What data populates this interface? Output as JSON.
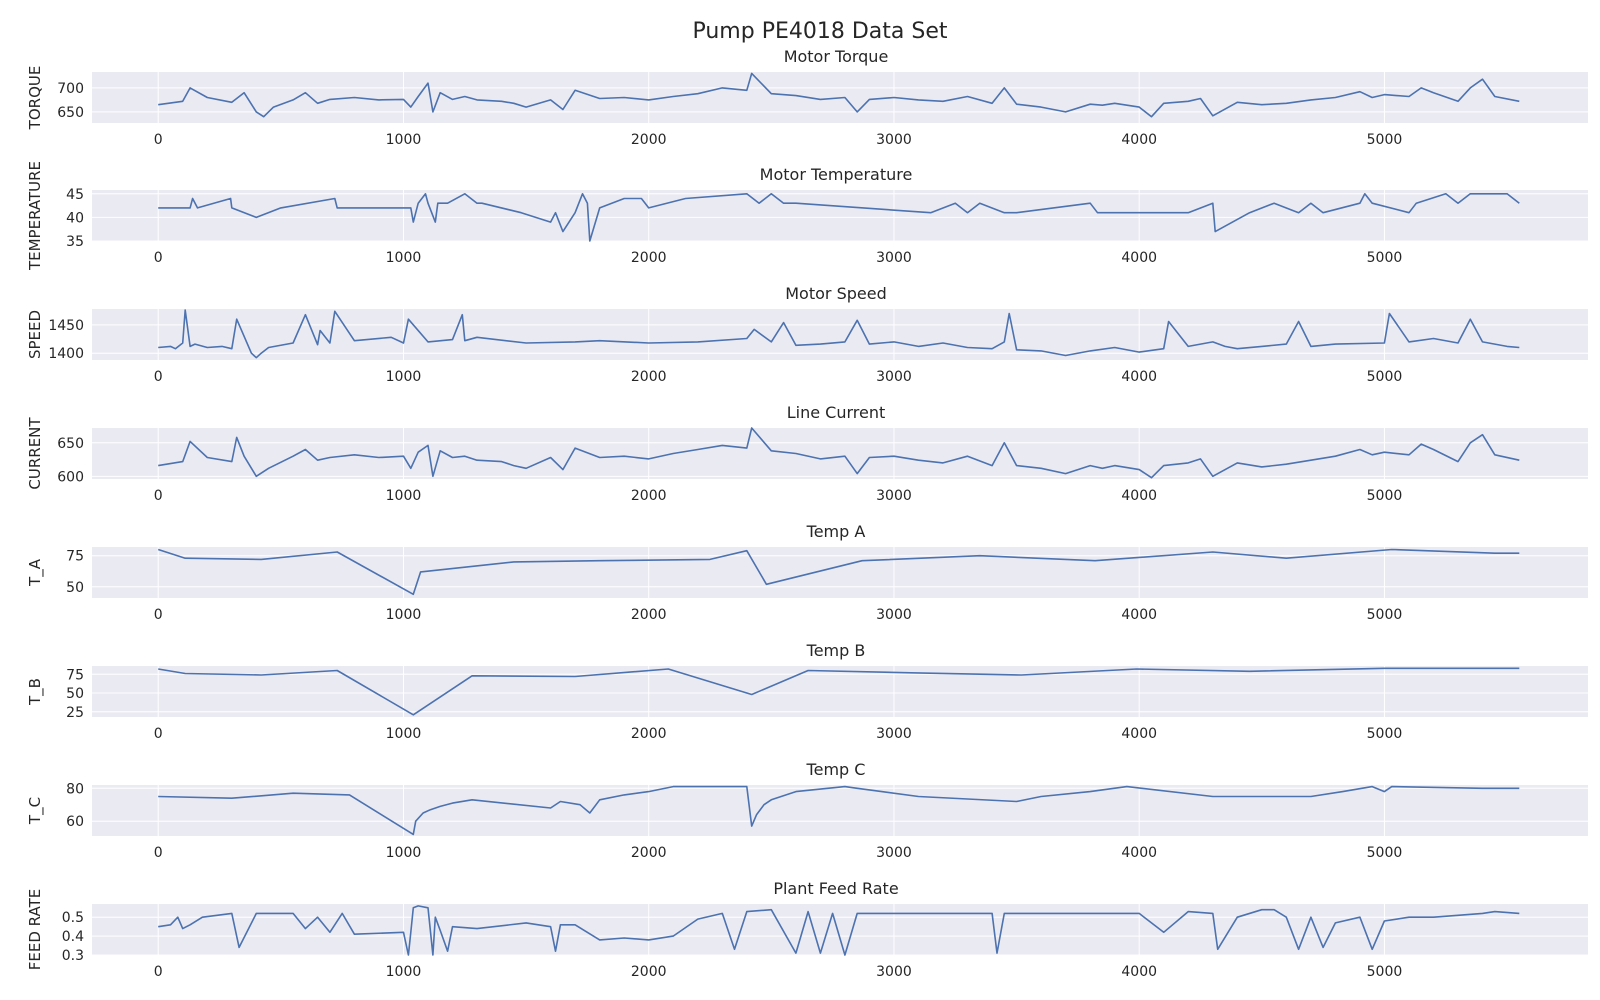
{
  "figure": {
    "title": "Pump PE4018 Data Set",
    "background": "#ffffff",
    "axes_face": "#eaeaf2",
    "grid_color": "#ffffff",
    "line_color": "#4c72b0"
  },
  "chart_data": [
    {
      "type": "line",
      "title": "Motor Torque",
      "xlabel": "",
      "ylabel": "TORQUE",
      "xlim": [
        -270,
        5830
      ],
      "ylim": [
        627,
        733
      ],
      "xticks": [
        0,
        1000,
        2000,
        3000,
        4000,
        5000
      ],
      "yticks": [
        650,
        700
      ],
      "grid": true,
      "series": [
        {
          "x": [
            0,
            100,
            130,
            200,
            300,
            350,
            400,
            430,
            470,
            550,
            600,
            650,
            700,
            800,
            900,
            1000,
            1030,
            1060,
            1100,
            1120,
            1150,
            1200,
            1250,
            1300,
            1400,
            1450,
            1500,
            1600,
            1650,
            1700,
            1800,
            1900,
            2000,
            2100,
            2200,
            2300,
            2400,
            2420,
            2500,
            2600,
            2700,
            2800,
            2850,
            2900,
            3000,
            3100,
            3200,
            3300,
            3400,
            3450,
            3500,
            3600,
            3700,
            3800,
            3850,
            3900,
            4000,
            4050,
            4100,
            4200,
            4250,
            4300,
            4400,
            4500,
            4600,
            4700,
            4800,
            4900,
            4950,
            5000,
            5100,
            5150,
            5200,
            5300,
            5350,
            5400,
            5450,
            5550
          ],
          "y": [
            665,
            672,
            700,
            680,
            670,
            690,
            650,
            640,
            660,
            675,
            690,
            668,
            676,
            680,
            675,
            676,
            660,
            682,
            710,
            650,
            690,
            676,
            682,
            675,
            672,
            668,
            660,
            675,
            655,
            695,
            678,
            680,
            675,
            682,
            688,
            700,
            695,
            730,
            688,
            684,
            676,
            680,
            650,
            676,
            680,
            675,
            672,
            682,
            668,
            700,
            666,
            660,
            650,
            666,
            664,
            668,
            660,
            640,
            668,
            672,
            678,
            642,
            670,
            665,
            668,
            675,
            680,
            692,
            680,
            686,
            682,
            700,
            690,
            672,
            700,
            718,
            682,
            672
          ]
        }
      ]
    },
    {
      "type": "line",
      "title": "Motor Temperature",
      "xlabel": "",
      "ylabel": "TEMPERATURE",
      "xlim": [
        -270,
        5830
      ],
      "ylim": [
        35,
        45.8
      ],
      "xticks": [
        0,
        1000,
        2000,
        3000,
        4000,
        5000
      ],
      "yticks": [
        35,
        40,
        45
      ],
      "grid": true,
      "series": [
        {
          "x": [
            0,
            130,
            140,
            160,
            295,
            300,
            400,
            500,
            720,
            730,
            1030,
            1040,
            1060,
            1090,
            1100,
            1130,
            1140,
            1180,
            1250,
            1300,
            1320,
            1480,
            1600,
            1620,
            1650,
            1700,
            1730,
            1750,
            1760,
            1800,
            1900,
            1970,
            2000,
            2150,
            2400,
            2450,
            2500,
            2550,
            2600,
            3150,
            3250,
            3300,
            3350,
            3450,
            3500,
            3800,
            3830,
            4200,
            4300,
            4310,
            4450,
            4550,
            4650,
            4700,
            4750,
            4900,
            4920,
            4950,
            5100,
            5130,
            5250,
            5300,
            5350,
            5500,
            5550
          ],
          "y": [
            42,
            42,
            44,
            42,
            44,
            42,
            40,
            42,
            44,
            42,
            42,
            39,
            43,
            45,
            43,
            39,
            43,
            43,
            45,
            43,
            43,
            41,
            39,
            41,
            37,
            41,
            45,
            43,
            35,
            42,
            44,
            44,
            42,
            44,
            45,
            43,
            45,
            43,
            43,
            41,
            43,
            41,
            43,
            41,
            41,
            43,
            41,
            41,
            43,
            37,
            41,
            43,
            41,
            43,
            41,
            43,
            45,
            43,
            41,
            43,
            45,
            43,
            45,
            45,
            43
          ]
        }
      ]
    },
    {
      "type": "line",
      "title": "Motor Speed",
      "xlabel": "",
      "ylabel": "SPEED",
      "xlim": [
        -270,
        5830
      ],
      "ylim": [
        1388,
        1478
      ],
      "xticks": [
        0,
        1000,
        2000,
        3000,
        4000,
        5000
      ],
      "yticks": [
        1400,
        1450
      ],
      "grid": true,
      "series": [
        {
          "x": [
            0,
            50,
            70,
            100,
            110,
            130,
            150,
            200,
            260,
            300,
            320,
            380,
            400,
            420,
            450,
            550,
            600,
            650,
            660,
            700,
            720,
            800,
            950,
            1000,
            1020,
            1100,
            1200,
            1240,
            1250,
            1300,
            1500,
            1700,
            1800,
            2000,
            2200,
            2400,
            2430,
            2500,
            2550,
            2600,
            2700,
            2800,
            2850,
            2900,
            3000,
            3100,
            3200,
            3300,
            3400,
            3450,
            3470,
            3500,
            3600,
            3700,
            3800,
            3900,
            4000,
            4100,
            4120,
            4200,
            4300,
            4350,
            4400,
            4500,
            4600,
            4650,
            4700,
            4800,
            5000,
            5020,
            5100,
            5200,
            5300,
            5350,
            5400,
            5500,
            5550
          ],
          "y": [
            1410,
            1412,
            1408,
            1418,
            1476,
            1412,
            1416,
            1410,
            1412,
            1408,
            1460,
            1400,
            1392,
            1400,
            1410,
            1418,
            1468,
            1415,
            1440,
            1418,
            1474,
            1422,
            1428,
            1418,
            1460,
            1420,
            1424,
            1468,
            1422,
            1428,
            1418,
            1420,
            1422,
            1418,
            1420,
            1426,
            1442,
            1420,
            1454,
            1414,
            1416,
            1420,
            1458,
            1416,
            1420,
            1412,
            1418,
            1410,
            1408,
            1420,
            1470,
            1406,
            1404,
            1396,
            1404,
            1410,
            1402,
            1408,
            1456,
            1412,
            1420,
            1412,
            1408,
            1412,
            1416,
            1456,
            1412,
            1416,
            1418,
            1470,
            1420,
            1426,
            1418,
            1460,
            1420,
            1412,
            1410
          ]
        }
      ]
    },
    {
      "type": "line",
      "title": "Line Current",
      "xlabel": "",
      "ylabel": "CURRENT",
      "xlim": [
        -270,
        5830
      ],
      "ylim": [
        596,
        672
      ],
      "xticks": [
        0,
        1000,
        2000,
        3000,
        4000,
        5000
      ],
      "yticks": [
        600,
        650
      ],
      "grid": true,
      "series": [
        {
          "x": [
            0,
            100,
            130,
            200,
            300,
            320,
            350,
            400,
            450,
            550,
            600,
            650,
            700,
            800,
            900,
            1000,
            1030,
            1060,
            1100,
            1120,
            1150,
            1200,
            1250,
            1300,
            1400,
            1450,
            1500,
            1600,
            1650,
            1700,
            1800,
            1900,
            2000,
            2100,
            2200,
            2300,
            2400,
            2420,
            2500,
            2600,
            2700,
            2800,
            2850,
            2900,
            3000,
            3100,
            3200,
            3300,
            3400,
            3450,
            3500,
            3600,
            3700,
            3800,
            3850,
            3900,
            4000,
            4050,
            4100,
            4200,
            4250,
            4300,
            4400,
            4500,
            4600,
            4700,
            4800,
            4900,
            4950,
            5000,
            5100,
            5150,
            5200,
            5300,
            5350,
            5400,
            5450,
            5550
          ],
          "y": [
            616,
            622,
            652,
            628,
            622,
            658,
            630,
            600,
            612,
            630,
            640,
            624,
            628,
            632,
            628,
            630,
            612,
            636,
            646,
            600,
            638,
            628,
            630,
            624,
            622,
            616,
            612,
            628,
            610,
            642,
            628,
            630,
            626,
            634,
            640,
            646,
            642,
            672,
            638,
            634,
            626,
            630,
            604,
            628,
            630,
            624,
            620,
            630,
            616,
            650,
            616,
            612,
            604,
            616,
            612,
            616,
            610,
            598,
            616,
            620,
            626,
            600,
            620,
            614,
            618,
            624,
            630,
            640,
            632,
            636,
            632,
            648,
            640,
            622,
            650,
            662,
            632,
            624
          ]
        }
      ]
    },
    {
      "type": "line",
      "title": "Temp A",
      "xlabel": "",
      "ylabel": "T_A",
      "xlim": [
        -270,
        5830
      ],
      "ylim": [
        41,
        82
      ],
      "xticks": [
        0,
        1000,
        2000,
        3000,
        4000,
        5000
      ],
      "yticks": [
        50,
        75
      ],
      "grid": true,
      "series": [
        {
          "x": [
            0,
            110,
            420,
            730,
            1040,
            1070,
            1450,
            1800,
            2250,
            2400,
            2480,
            2870,
            3350,
            3820,
            4300,
            4600,
            5030,
            5450,
            5550
          ],
          "y": [
            80,
            73,
            72,
            78,
            44,
            62,
            70,
            71,
            72,
            79,
            52,
            71,
            75,
            71,
            78,
            73,
            80,
            77,
            77
          ]
        }
      ]
    },
    {
      "type": "line",
      "title": "Temp B",
      "xlabel": "",
      "ylabel": "T_B",
      "xlim": [
        -270,
        5830
      ],
      "ylim": [
        18,
        86
      ],
      "xticks": [
        0,
        1000,
        2000,
        3000,
        4000,
        5000
      ],
      "yticks": [
        25,
        50,
        75
      ],
      "grid": true,
      "series": [
        {
          "x": [
            0,
            110,
            420,
            730,
            1040,
            1280,
            1700,
            2080,
            2420,
            2650,
            3070,
            3520,
            3990,
            4450,
            5000,
            5550
          ],
          "y": [
            82,
            76,
            74,
            80,
            21,
            73,
            72,
            82,
            48,
            80,
            77,
            74,
            82,
            79,
            83,
            83
          ]
        }
      ]
    },
    {
      "type": "line",
      "title": "Temp C",
      "xlabel": "",
      "ylabel": "T_C",
      "xlim": [
        -270,
        5830
      ],
      "ylim": [
        51,
        82
      ],
      "xticks": [
        0,
        1000,
        2000,
        3000,
        4000,
        5000
      ],
      "yticks": [
        60,
        80
      ],
      "grid": true,
      "series": [
        {
          "x": [
            0,
            300,
            550,
            780,
            1040,
            1050,
            1080,
            1110,
            1150,
            1200,
            1280,
            1600,
            1640,
            1720,
            1760,
            1800,
            1900,
            2000,
            2100,
            2400,
            2420,
            2440,
            2470,
            2500,
            2600,
            2800,
            2850,
            2950,
            3100,
            3500,
            3600,
            3800,
            3950,
            4300,
            4400,
            4700,
            4830,
            4950,
            5000,
            5030,
            5400,
            5550
          ],
          "y": [
            75,
            74,
            77,
            76,
            52,
            60,
            65,
            67,
            69,
            71,
            73,
            68,
            72,
            70,
            65,
            73,
            76,
            78,
            81,
            81,
            57,
            64,
            70,
            73,
            78,
            81,
            80,
            78,
            75,
            72,
            75,
            78,
            81,
            75,
            75,
            75,
            78,
            81,
            78,
            81,
            80,
            80
          ]
        }
      ]
    },
    {
      "type": "line",
      "title": "Plant Feed Rate",
      "xlabel": "",
      "ylabel": "FEED RATE",
      "xlim": [
        -270,
        5830
      ],
      "ylim": [
        0.3,
        0.57
      ],
      "xticks": [
        0,
        1000,
        2000,
        3000,
        4000,
        5000
      ],
      "yticks": [
        0.3,
        0.4,
        0.5
      ],
      "grid": true,
      "series": [
        {
          "x": [
            0,
            50,
            80,
            100,
            130,
            180,
            300,
            330,
            400,
            550,
            600,
            650,
            700,
            750,
            800,
            1000,
            1020,
            1030,
            1040,
            1060,
            1100,
            1120,
            1130,
            1150,
            1180,
            1200,
            1300,
            1500,
            1600,
            1620,
            1640,
            1700,
            1800,
            1900,
            2000,
            2100,
            2200,
            2300,
            2350,
            2400,
            2500,
            2600,
            2650,
            2700,
            2750,
            2800,
            2850,
            2900,
            3000,
            3400,
            3420,
            3450,
            4000,
            4100,
            4200,
            4300,
            4320,
            4400,
            4500,
            4550,
            4600,
            4650,
            4700,
            4750,
            4800,
            4900,
            4950,
            5000,
            5100,
            5200,
            5400,
            5450,
            5550
          ],
          "y": [
            0.45,
            0.46,
            0.5,
            0.44,
            0.46,
            0.5,
            0.52,
            0.34,
            0.52,
            0.52,
            0.44,
            0.5,
            0.42,
            0.52,
            0.41,
            0.42,
            0.3,
            0.42,
            0.55,
            0.56,
            0.55,
            0.3,
            0.5,
            0.43,
            0.32,
            0.45,
            0.44,
            0.47,
            0.45,
            0.32,
            0.46,
            0.46,
            0.38,
            0.39,
            0.38,
            0.4,
            0.49,
            0.52,
            0.33,
            0.53,
            0.54,
            0.31,
            0.53,
            0.31,
            0.52,
            0.3,
            0.52,
            0.52,
            0.52,
            0.52,
            0.31,
            0.52,
            0.52,
            0.42,
            0.53,
            0.52,
            0.33,
            0.5,
            0.54,
            0.54,
            0.5,
            0.33,
            0.5,
            0.34,
            0.47,
            0.5,
            0.33,
            0.48,
            0.5,
            0.5,
            0.52,
            0.53,
            0.52
          ]
        }
      ]
    }
  ]
}
